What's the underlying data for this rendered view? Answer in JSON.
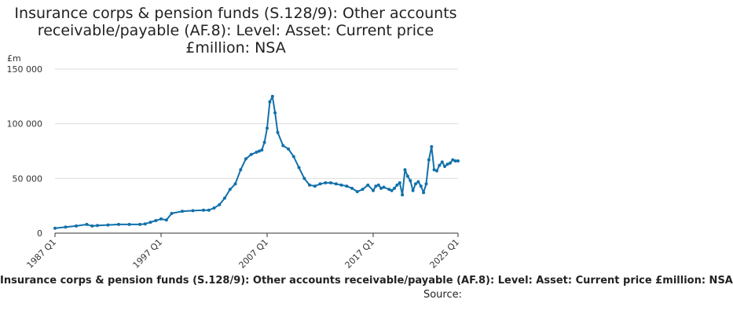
{
  "title_lines": [
    "Insurance corps & pension funds (S.128/9): Other accounts",
    "receivable/payable (AF.8): Level: Asset: Current price",
    "£million: NSA"
  ],
  "caption": "Insurance corps & pension funds (S.128/9): Other accounts receivable/payable (AF.8): Level: Asset: Current price £million: NSA",
  "source_label": "Source:",
  "colors": {
    "line": "#1170aa",
    "axis": "#333333",
    "grid": "#dddddd"
  },
  "chart_data": {
    "type": "line",
    "title": "Insurance corps & pension funds (S.128/9): Other accounts receivable/payable (AF.8): Level: Asset: Current price £million: NSA",
    "ylabel": "£m",
    "xlabel": "",
    "ylim": [
      0,
      150000
    ],
    "yticks": [
      0,
      50000,
      100000,
      150000
    ],
    "ytick_labels": [
      "0",
      "50 000",
      "100 000",
      "150 000"
    ],
    "xlim": [
      "1987 Q1",
      "2025 Q1"
    ],
    "xticks": [
      "1987 Q1",
      "1997 Q1",
      "2007 Q1",
      "2017 Q1",
      "2025 Q1"
    ],
    "grid": "horizontal",
    "series": [
      {
        "x": [
          "1987 Q1",
          "1988 Q1",
          "1989 Q1",
          "1990 Q1",
          "1990 Q3",
          "1991 Q1",
          "1992 Q1",
          "1993 Q1",
          "1994 Q1",
          "1995 Q1",
          "1995 Q3",
          "1996 Q1",
          "1996 Q3",
          "1997 Q1",
          "1997 Q3",
          "1998 Q1",
          "1999 Q1",
          "2000 Q1",
          "2001 Q1",
          "2001 Q3",
          "2002 Q1",
          "2002 Q3",
          "2003 Q1",
          "2003 Q3",
          "2004 Q1",
          "2004 Q3",
          "2005 Q1",
          "2005 Q3",
          "2006 Q1",
          "2006 Q2",
          "2006 Q3",
          "2006 Q4",
          "2007 Q1",
          "2007 Q2",
          "2007 Q3",
          "2007 Q4",
          "2008 Q1",
          "2008 Q3",
          "2009 Q1",
          "2009 Q3",
          "2010 Q1",
          "2010 Q3",
          "2011 Q1",
          "2011 Q3",
          "2012 Q1",
          "2012 Q3",
          "2013 Q1",
          "2013 Q3",
          "2014 Q1",
          "2014 Q3",
          "2015 Q1",
          "2015 Q3",
          "2016 Q1",
          "2016 Q3",
          "2017 Q1",
          "2017 Q2",
          "2017 Q3",
          "2017 Q4",
          "2018 Q1",
          "2018 Q3",
          "2018 Q4",
          "2019 Q1",
          "2019 Q2",
          "2019 Q3",
          "2019 Q4",
          "2020 Q1",
          "2020 Q2",
          "2020 Q3",
          "2020 Q4",
          "2021 Q1",
          "2021 Q2",
          "2021 Q3",
          "2021 Q4",
          "2022 Q1",
          "2022 Q2",
          "2022 Q3",
          "2022 Q4",
          "2023 Q1",
          "2023 Q2",
          "2023 Q3",
          "2023 Q4",
          "2024 Q1",
          "2024 Q2",
          "2024 Q3",
          "2024 Q4",
          "2025 Q1"
        ],
        "values": [
          4500,
          5500,
          6500,
          8000,
          6500,
          7000,
          7500,
          8000,
          8000,
          8000,
          8500,
          10000,
          11500,
          13000,
          12000,
          18000,
          20000,
          20500,
          21000,
          21000,
          23000,
          26000,
          32000,
          40000,
          45000,
          58000,
          68000,
          72000,
          74000,
          75000,
          76000,
          83000,
          96000,
          120000,
          125000,
          110000,
          92000,
          80000,
          77000,
          70000,
          60000,
          50000,
          44000,
          43000,
          45000,
          46000,
          46000,
          45000,
          44000,
          43000,
          41000,
          38000,
          40000,
          44000,
          39000,
          43000,
          44000,
          41000,
          42000,
          40000,
          39000,
          41000,
          44000,
          46000,
          35000,
          58000,
          52000,
          48000,
          39000,
          45000,
          47000,
          43000,
          37000,
          45000,
          67000,
          79000,
          58000,
          57000,
          62000,
          65000,
          61000,
          63000,
          64000,
          67000,
          66000,
          66000
        ]
      }
    ]
  }
}
